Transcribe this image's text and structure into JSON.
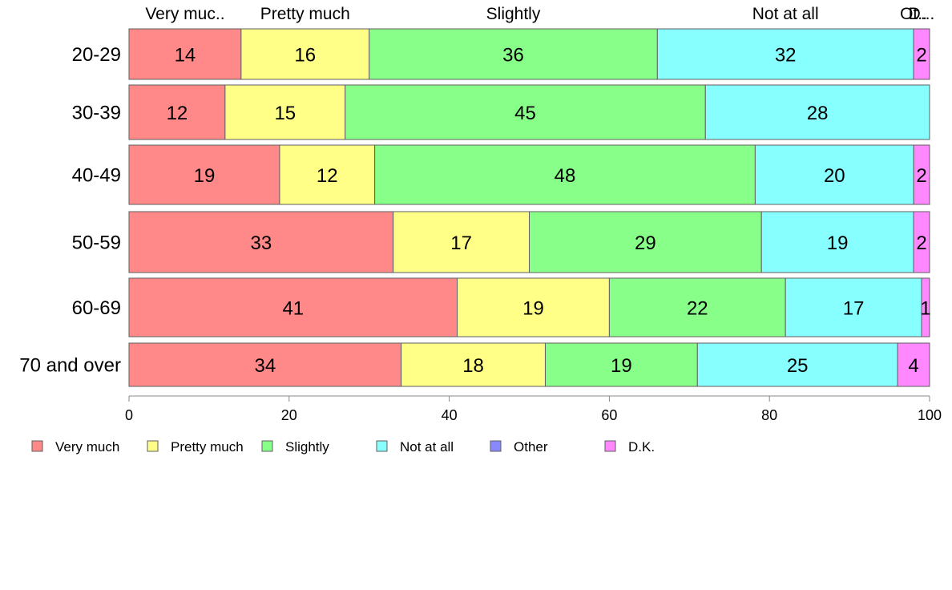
{
  "chart_data": {
    "type": "bar",
    "orientation": "horizontal",
    "stacked": true,
    "categories": [
      "20-29",
      "30-39",
      "40-49",
      "50-59",
      "60-69",
      "70 and over"
    ],
    "series": [
      {
        "name": "Very much",
        "values": [
          14,
          12,
          19,
          33,
          41,
          34
        ],
        "color": "#FF8888"
      },
      {
        "name": "Pretty much",
        "values": [
          16,
          15,
          12,
          17,
          19,
          18
        ],
        "color": "#FFFF88"
      },
      {
        "name": "Slightly",
        "values": [
          36,
          45,
          48,
          29,
          22,
          19
        ],
        "color": "#88FF88"
      },
      {
        "name": "Not at all",
        "values": [
          32,
          28,
          20,
          19,
          17,
          25
        ],
        "color": "#88FFFF"
      },
      {
        "name": "Other",
        "values": [
          0,
          0,
          0,
          0,
          0,
          0
        ],
        "color": "#8888FF"
      },
      {
        "name": "D.K.",
        "values": [
          2,
          0,
          2,
          2,
          1,
          4
        ],
        "color": "#FF88FF"
      }
    ],
    "top_labels": [
      "Very muc..",
      "Pretty much",
      "Slightly",
      "Not at all",
      "Ot..",
      "D..."
    ],
    "segment_labels": [
      [
        "14",
        "16",
        "36",
        "32",
        "",
        "2"
      ],
      [
        "12",
        "15",
        "45",
        "28",
        "",
        ""
      ],
      [
        "19",
        "12",
        "48",
        "20",
        "",
        "2"
      ],
      [
        "33",
        "17",
        "29",
        "19",
        "",
        "2"
      ],
      [
        "41",
        "19",
        "22",
        "17",
        "",
        "1"
      ],
      [
        "34",
        "18",
        "19",
        "25",
        "",
        "4"
      ]
    ],
    "x_ticks": [
      "0",
      "20",
      "40",
      "60",
      "80",
      "100"
    ],
    "xlim": [
      0,
      100
    ],
    "xlabel": "",
    "ylabel": "",
    "title": "",
    "grid": false,
    "legend_position": "bottom-left"
  }
}
